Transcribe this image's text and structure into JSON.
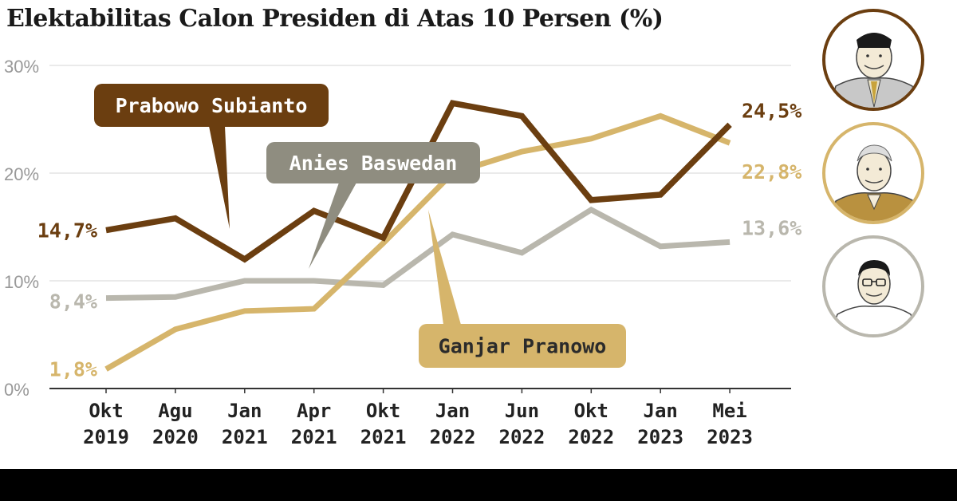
{
  "colors": {
    "prabowo": "#6b3e10",
    "ganjar": "#d6b56b",
    "anies": "#b9b7ad",
    "anies_label_bg": "#8f8d80",
    "axis": "#333333",
    "grid": "#e3e3e3",
    "tick_label": "#999999",
    "x_label": "#222222"
  },
  "chart_data": {
    "type": "line",
    "title": "Elektabilitas Calon Presiden di Atas 10 Persen (%)",
    "xlabel": "",
    "ylabel": "",
    "ylim": [
      0,
      30
    ],
    "y_ticks": [
      0,
      10,
      20,
      30
    ],
    "y_tick_labels": [
      "0%",
      "10%",
      "20%",
      "30%"
    ],
    "grid": true,
    "categories": [
      [
        "Okt",
        "2019"
      ],
      [
        "Agu",
        "2020"
      ],
      [
        "Jan",
        "2021"
      ],
      [
        "Apr",
        "2021"
      ],
      [
        "Okt",
        "2021"
      ],
      [
        "Jan",
        "2022"
      ],
      [
        "Jun",
        "2022"
      ],
      [
        "Okt",
        "2022"
      ],
      [
        "Jan",
        "2023"
      ],
      [
        "Mei",
        "2023"
      ]
    ],
    "series": [
      {
        "key": "prabowo",
        "name": "Prabowo Subianto",
        "values": [
          14.7,
          15.8,
          12.0,
          16.5,
          14.0,
          26.5,
          25.3,
          17.5,
          18.0,
          24.5
        ],
        "start_label": "14,7%",
        "end_label": "24,5%"
      },
      {
        "key": "ganjar",
        "name": "Ganjar Pranowo",
        "values": [
          1.8,
          5.5,
          7.2,
          7.4,
          13.5,
          20.0,
          22.0,
          23.2,
          25.3,
          22.8
        ],
        "start_label": "1,8%",
        "end_label": "22,8%"
      },
      {
        "key": "anies",
        "name": "Anies Baswedan",
        "values": [
          8.4,
          8.5,
          10.0,
          10.0,
          9.6,
          14.3,
          12.6,
          16.6,
          13.2,
          13.6
        ],
        "start_label": "8,4%",
        "end_label": "13,6%"
      }
    ]
  },
  "avatars": [
    {
      "name": "prabowo-avatar-icon",
      "ring_color": "#6b3e10"
    },
    {
      "name": "ganjar-avatar-icon",
      "ring_color": "#d6b56b"
    },
    {
      "name": "anies-avatar-icon",
      "ring_color": "#b9b7ad"
    }
  ]
}
